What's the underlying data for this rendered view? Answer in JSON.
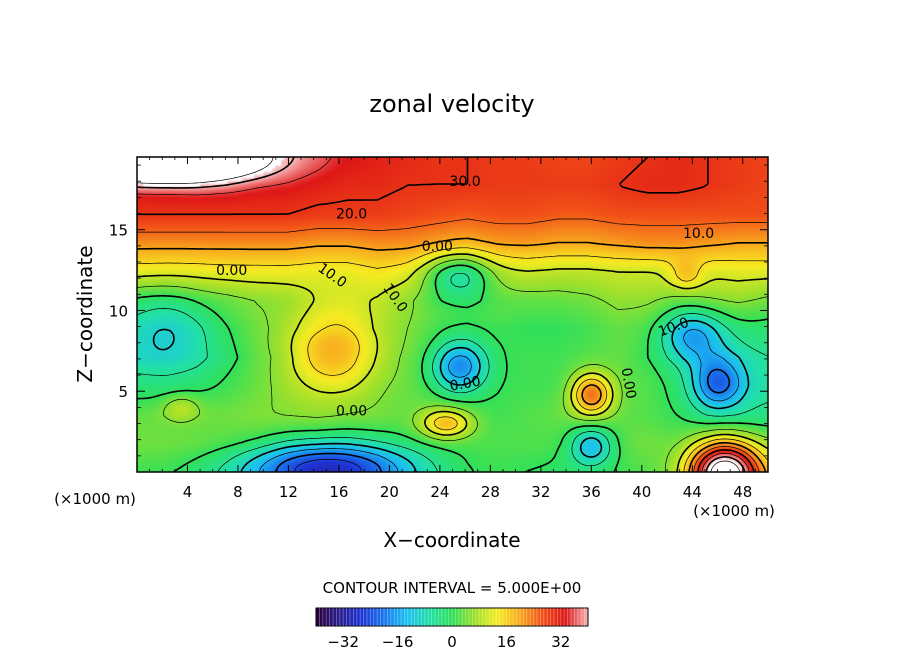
{
  "chart_data": {
    "type": "heatmap",
    "title": "zonal velocity",
    "xlabel": "X−coordinate",
    "ylabel": "Z−coordinate",
    "x_unit_left": "(×1000 m)",
    "x_unit_right": "(×1000 m)",
    "xlim": [
      0,
      50
    ],
    "ylim": [
      0,
      19.5
    ],
    "x_ticks": [
      4,
      8,
      12,
      16,
      20,
      24,
      28,
      32,
      36,
      40,
      44,
      48
    ],
    "y_ticks": [
      5,
      10,
      15
    ],
    "contour_interval_text": "CONTOUR INTERVAL = 5.000E+00",
    "colorbar": {
      "range": [
        -40,
        40
      ],
      "ticks": [
        -32,
        -16,
        0,
        16,
        32
      ],
      "tick_labels": [
        "−32",
        "−16",
        "0",
        "16",
        "32"
      ],
      "colors": [
        "#2a003a",
        "#2a1d8c",
        "#1e34d6",
        "#1a78ee",
        "#1cc0f2",
        "#22e0a8",
        "#30e05a",
        "#9ee02c",
        "#f6ec22",
        "#f8a81e",
        "#f25018",
        "#de1616",
        "#f7b7b7"
      ]
    },
    "background_field": [
      [
        36,
        36,
        37,
        38,
        38,
        36,
        35,
        33,
        32,
        31,
        30,
        30,
        29,
        29,
        28,
        28,
        29,
        30,
        31,
        30,
        29,
        28
      ],
      [
        33,
        33,
        34,
        34,
        33,
        33,
        32,
        31,
        31,
        30,
        30,
        30,
        29,
        29,
        29,
        29,
        30,
        31,
        31,
        30,
        29,
        28
      ],
      [
        30,
        30,
        30,
        30,
        30,
        30,
        29,
        29,
        29,
        28,
        27,
        26,
        27,
        27,
        26,
        26,
        27,
        27,
        27,
        27,
        27,
        27
      ],
      [
        22,
        22,
        22,
        22,
        22,
        22,
        21,
        21,
        22,
        22,
        21,
        20,
        21,
        21,
        20,
        20,
        21,
        22,
        22,
        21,
        20,
        20
      ],
      [
        13,
        13,
        13,
        13,
        13,
        13,
        12,
        12,
        14,
        13,
        10,
        9,
        10,
        10,
        9,
        9,
        10,
        10,
        10,
        11,
        12,
        12
      ],
      [
        2,
        3,
        4,
        4,
        5,
        5,
        7,
        8,
        8,
        6,
        3,
        2,
        3,
        3,
        3,
        4,
        6,
        6,
        5,
        6,
        6,
        4
      ],
      [
        -3,
        -2,
        -1,
        1,
        3,
        3,
        3,
        4,
        4,
        4,
        2,
        1,
        1,
        0,
        0,
        1,
        3,
        3,
        1,
        0,
        -1,
        -2
      ],
      [
        -6,
        -5,
        -4,
        -1,
        2,
        2,
        3,
        3,
        3,
        3,
        3,
        1,
        1,
        1,
        1,
        2,
        3,
        1,
        -2,
        -5,
        -6,
        -5
      ],
      [
        -2,
        -2,
        -1,
        1,
        3,
        4,
        4,
        4,
        3,
        3,
        3,
        2,
        1,
        1,
        1,
        2,
        3,
        2,
        -1,
        -4,
        -6,
        -6
      ],
      [
        3,
        3,
        3,
        4,
        5,
        5,
        5,
        4,
        4,
        3,
        3,
        2,
        1,
        2,
        3,
        3,
        3,
        2,
        0,
        -3,
        -4,
        -4
      ],
      [
        4,
        4,
        4,
        4,
        4,
        3,
        3,
        2,
        2,
        2,
        2,
        2,
        2,
        2,
        2,
        3,
        3,
        4,
        2,
        1,
        2,
        4
      ],
      [
        1,
        1,
        0,
        -1,
        -2,
        -3,
        -4,
        -4,
        -4,
        -3,
        -1,
        1,
        1,
        0,
        -1,
        0,
        1,
        2,
        3,
        5,
        8,
        10
      ]
    ],
    "features": [
      {
        "x": 2.0,
        "z": 19.3,
        "rx": 7.0,
        "ry": 1.3,
        "amp": 40
      },
      {
        "x": 15.5,
        "z": 7.5,
        "rx": 3.8,
        "ry": 2.6,
        "amp": 16
      },
      {
        "x": 25.5,
        "z": 6.5,
        "rx": 2.2,
        "ry": 1.6,
        "amp": -20
      },
      {
        "x": 25.5,
        "z": 12.2,
        "rx": 2.6,
        "ry": 1.4,
        "amp": -14
      },
      {
        "x": 24.5,
        "z": 3.0,
        "rx": 2.0,
        "ry": 0.9,
        "amp": 16
      },
      {
        "x": 36.0,
        "z": 4.8,
        "rx": 1.6,
        "ry": 1.3,
        "amp": 22
      },
      {
        "x": 36.0,
        "z": 1.6,
        "rx": 1.7,
        "ry": 1.2,
        "amp": -16
      },
      {
        "x": 46.5,
        "z": 0.0,
        "rx": 2.7,
        "ry": 1.9,
        "amp": 46
      },
      {
        "x": 15.0,
        "z": 0.3,
        "rx": 6.5,
        "ry": 1.7,
        "amp": -26
      },
      {
        "x": 44.0,
        "z": 8.5,
        "rx": 2.5,
        "ry": 1.6,
        "amp": -16
      },
      {
        "x": 46.0,
        "z": 5.5,
        "rx": 2.0,
        "ry": 1.6,
        "amp": -18
      },
      {
        "x": 2.5,
        "z": 9.0,
        "rx": 3.5,
        "ry": 2.5,
        "amp": -8
      },
      {
        "x": 43.5,
        "z": 12.2,
        "rx": 1.3,
        "ry": 0.9,
        "amp": 8
      },
      {
        "x": 3.5,
        "z": 4.0,
        "rx": 1.5,
        "ry": 0.8,
        "amp": 7
      }
    ],
    "contour_labels": [
      {
        "text": "30.0",
        "x": 26.0,
        "z": 18.0
      },
      {
        "text": "20.0",
        "x": 17.0,
        "z": 16.0
      },
      {
        "text": "10.0",
        "x": 44.5,
        "z": 14.8
      },
      {
        "text": "0.00",
        "x": 23.8,
        "z": 14.0
      },
      {
        "text": "0.00",
        "x": 7.5,
        "z": 12.5
      },
      {
        "text": "10.0",
        "x": 15.5,
        "z": 12.2,
        "angle": 35
      },
      {
        "text": "10.0",
        "x": 20.5,
        "z": 10.8,
        "angle": 55
      },
      {
        "text": "10.0",
        "x": 42.5,
        "z": 9.0,
        "angle": -20
      },
      {
        "text": "0.00",
        "x": 26.0,
        "z": 5.5,
        "angle": -10
      },
      {
        "text": "0.00",
        "x": 39.0,
        "z": 5.5,
        "angle": 80
      },
      {
        "text": "0.00",
        "x": 17.0,
        "z": 3.8
      }
    ]
  }
}
